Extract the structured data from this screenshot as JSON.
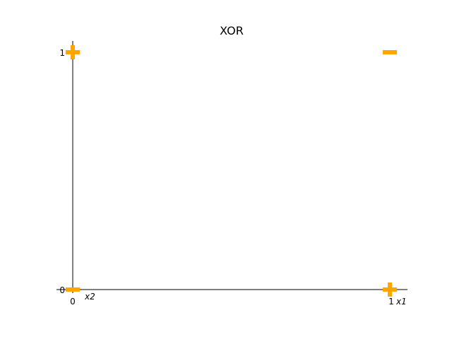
{
  "chart_data": {
    "type": "scatter",
    "title": "XOR",
    "xlabel": "x1",
    "ylabel": "x2",
    "xlim": [
      0,
      1
    ],
    "ylim": [
      0,
      1
    ],
    "x_ticks": [
      "0",
      "1"
    ],
    "y_ticks": [
      "0",
      "1"
    ],
    "grid": false,
    "marker_color": "#FFA500",
    "axis_color": "#000000",
    "points": [
      {
        "x": 0,
        "y": 0,
        "marker": "minus",
        "label": "−"
      },
      {
        "x": 0,
        "y": 1,
        "marker": "plus",
        "label": "+"
      },
      {
        "x": 1,
        "y": 0,
        "marker": "plus",
        "label": "+"
      },
      {
        "x": 1,
        "y": 1,
        "marker": "minus",
        "label": "−"
      }
    ]
  }
}
